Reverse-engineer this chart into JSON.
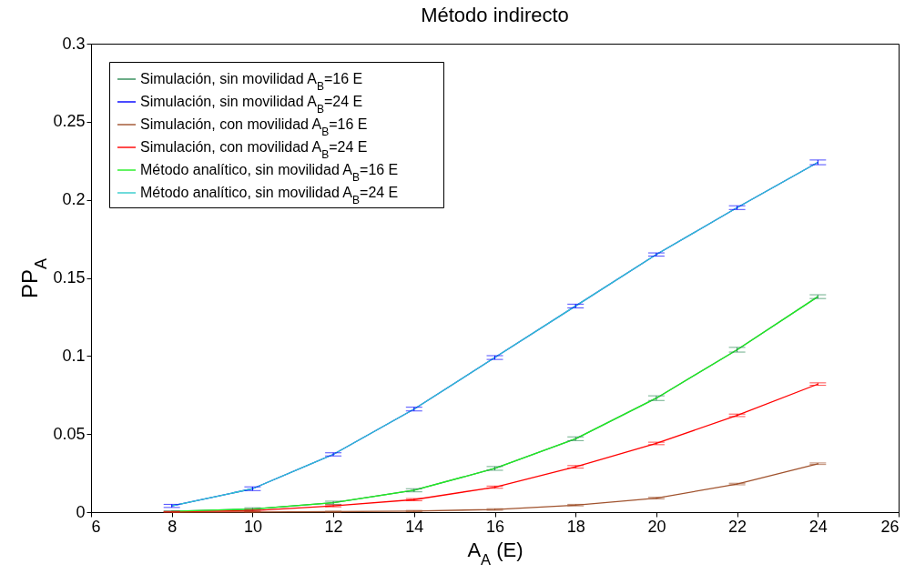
{
  "chart_data": {
    "type": "line",
    "title": "Método indirecto",
    "xlabel": "A$_{A}$ (E)",
    "ylabel": "PP$_{A}$",
    "x": [
      8,
      10,
      12,
      14,
      16,
      18,
      20,
      22,
      24
    ],
    "series": [
      {
        "name": "Simulación, sin movilidad A$_{B}$=16 E",
        "color": "#2e8b57",
        "values": [
          0.0005,
          0.002,
          0.006,
          0.014,
          0.028,
          0.047,
          0.073,
          0.104,
          0.138
        ],
        "errors": [
          0.0004,
          0.0008,
          0.001,
          0.001,
          0.0012,
          0.0012,
          0.0015,
          0.0015,
          0.0012
        ]
      },
      {
        "name": "Simulación, sin movilidad A$_{B}$=24 E",
        "color": "#0000ff",
        "values": [
          0.004,
          0.015,
          0.037,
          0.066,
          0.099,
          0.132,
          0.165,
          0.195,
          0.224
        ],
        "errors": [
          0.001,
          0.0012,
          0.001,
          0.0012,
          0.0012,
          0.0012,
          0.001,
          0.0012,
          0.0015
        ]
      },
      {
        "name": "Simulación, con movilidad A$_{B}$=16 E",
        "color": "#a0522d",
        "values": [
          0.0,
          0.0001,
          0.0003,
          0.0007,
          0.0017,
          0.0045,
          0.009,
          0.018,
          0.031
        ],
        "errors": [
          [
            0,
            0.0003
          ],
          0.0001,
          0.0003,
          0.0004,
          0.0005,
          0.0005,
          0.0005,
          0.0005,
          0.0005
        ]
      },
      {
        "name": "Simulación, con movilidad A$_{B}$=24 E",
        "color": "#ff0000",
        "values": [
          0.0002,
          0.001,
          0.004,
          0.008,
          0.016,
          0.029,
          0.044,
          0.062,
          0.082
        ],
        "errors": [
          0.0002,
          0.0006,
          0.0006,
          0.0007,
          0.0007,
          0.0008,
          0.0008,
          0.0008,
          0.0008
        ]
      },
      {
        "name": "Método analítico, sin movilidad A$_{B}$=16 E",
        "color": "#22ee22",
        "values": [
          0.0005,
          0.002,
          0.006,
          0.014,
          0.028,
          0.047,
          0.073,
          0.104,
          0.138
        ]
      },
      {
        "name": "Método analítico, sin movilidad A$_{B}$=24 E",
        "color": "#33cccc",
        "values": [
          0.004,
          0.015,
          0.037,
          0.066,
          0.099,
          0.132,
          0.165,
          0.195,
          0.224
        ]
      }
    ],
    "xlim": [
      6,
      26
    ],
    "xticks": [
      6,
      8,
      10,
      12,
      14,
      16,
      18,
      20,
      22,
      24,
      26
    ],
    "ylim": [
      0,
      0.3
    ],
    "yticks": [
      0,
      0.05,
      0.1,
      0.15,
      0.2,
      0.25,
      0.3
    ],
    "legend": "top left",
    "grid": false,
    "marker": "none",
    "line_style": "solid"
  }
}
